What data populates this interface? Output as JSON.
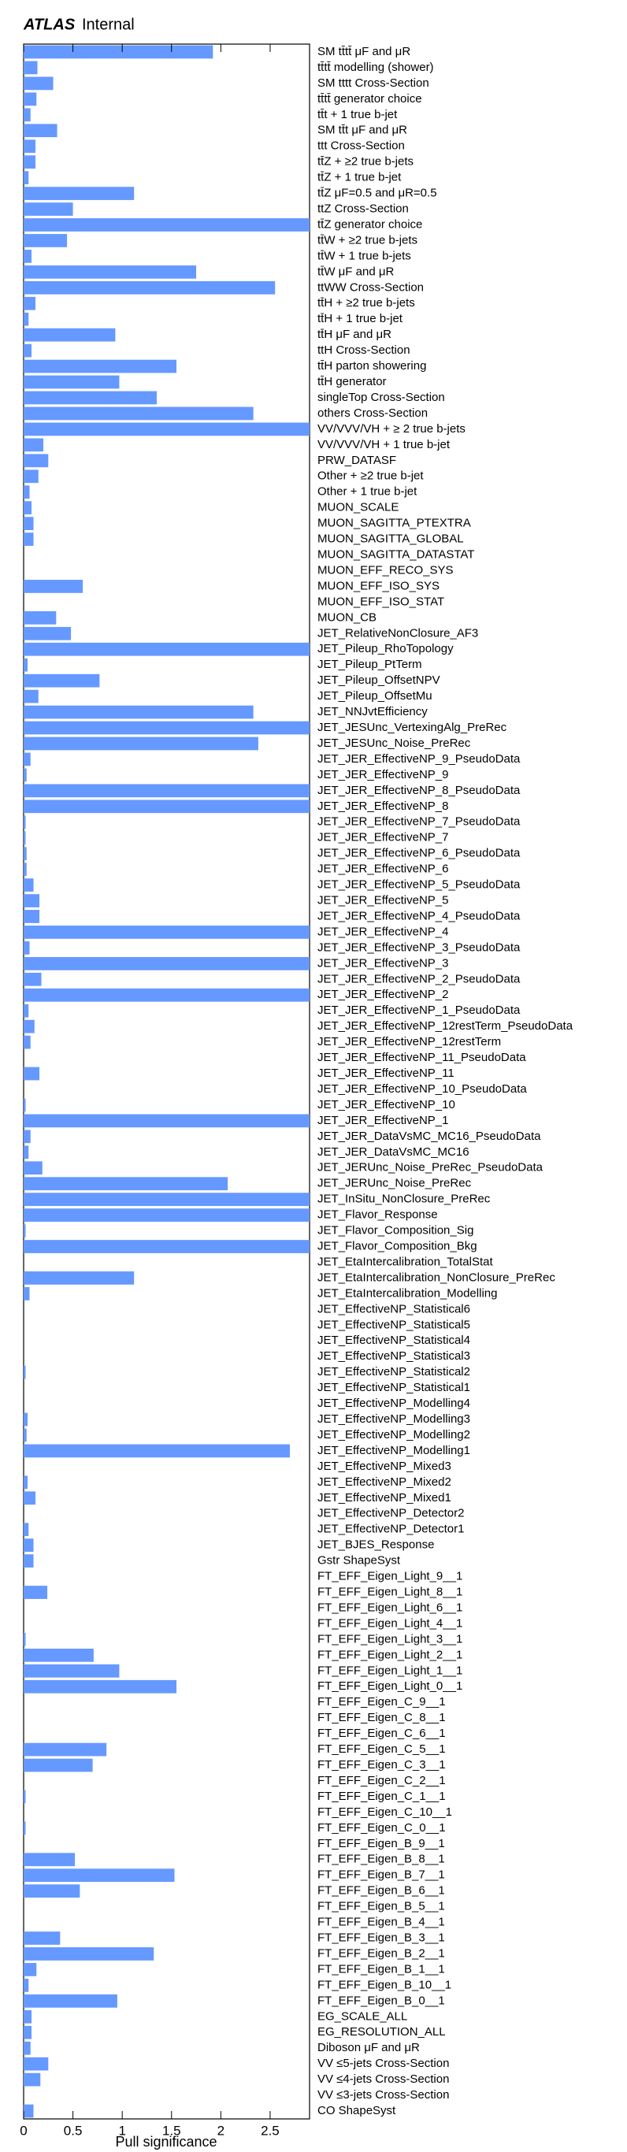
{
  "chart_data": {
    "type": "barh",
    "brand": "ATLAS",
    "title": "Internal",
    "xlabel": "Pull significance",
    "color": "#6699ff",
    "xlim": [
      0,
      2.9
    ],
    "xticks": [
      0,
      0.5,
      1,
      1.5,
      2,
      2.5
    ],
    "categories": [
      "SM tt̄tt̄  μF and  μR",
      "tt̄tt̄ modelling (shower)",
      "SM tttt Cross-Section",
      "tt̄tt̄ generator choice",
      "tt̄t + 1 true b-jet",
      "SM tt̄t  μF and  μR",
      "ttt Cross-Section",
      "tt̄Z +  ≥2 true b-jets",
      "tt̄Z + 1 true b-jet",
      "tt̄Z  μF=0.5 and  μR=0.5",
      "ttZ Cross-Section",
      "tt̄Z generator choice",
      "tt̄W +  ≥2 true b-jets",
      "tt̄W + 1 true b-jets",
      "tt̄W  μF and  μR",
      "ttWW Cross-Section",
      "tt̄H +  ≥2 true b-jets",
      "tt̄H + 1 true b-jet",
      "tt̄H  μF and  μR",
      "ttH Cross-Section",
      "tt̄H parton showering",
      "tt̄H generator",
      "singleTop Cross-Section",
      "others Cross-Section",
      "VV/VVV/VH +  ≥ 2 true b-jets",
      "VV/VVV/VH + 1 true b-jet",
      "PRW_DATASF",
      "Other +  ≥2 true b-jet",
      "Other + 1 true b-jet",
      "MUON_SCALE",
      "MUON_SAGITTA_PTEXTRA",
      "MUON_SAGITTA_GLOBAL",
      "MUON_SAGITTA_DATASTAT",
      "MUON_EFF_RECO_SYS",
      "MUON_EFF_ISO_SYS",
      "MUON_EFF_ISO_STAT",
      "MUON_CB",
      "JET_RelativeNonClosure_AF3",
      "JET_Pileup_RhoTopology",
      "JET_Pileup_PtTerm",
      "JET_Pileup_OffsetNPV",
      "JET_Pileup_OffsetMu",
      "JET_NNJvtEfficiency",
      "JET_JESUnc_VertexingAlg_PreRec",
      "JET_JESUnc_Noise_PreRec",
      "JET_JER_EffectiveNP_9_PseudoData",
      "JET_JER_EffectiveNP_9",
      "JET_JER_EffectiveNP_8_PseudoData",
      "JET_JER_EffectiveNP_8",
      "JET_JER_EffectiveNP_7_PseudoData",
      "JET_JER_EffectiveNP_7",
      "JET_JER_EffectiveNP_6_PseudoData",
      "JET_JER_EffectiveNP_6",
      "JET_JER_EffectiveNP_5_PseudoData",
      "JET_JER_EffectiveNP_5",
      "JET_JER_EffectiveNP_4_PseudoData",
      "JET_JER_EffectiveNP_4",
      "JET_JER_EffectiveNP_3_PseudoData",
      "JET_JER_EffectiveNP_3",
      "JET_JER_EffectiveNP_2_PseudoData",
      "JET_JER_EffectiveNP_2",
      "JET_JER_EffectiveNP_1_PseudoData",
      "JET_JER_EffectiveNP_12restTerm_PseudoData",
      "JET_JER_EffectiveNP_12restTerm",
      "JET_JER_EffectiveNP_11_PseudoData",
      "JET_JER_EffectiveNP_11",
      "JET_JER_EffectiveNP_10_PseudoData",
      "JET_JER_EffectiveNP_10",
      "JET_JER_EffectiveNP_1",
      "JET_JER_DataVsMC_MC16_PseudoData",
      "JET_JER_DataVsMC_MC16",
      "JET_JERUnc_Noise_PreRec_PseudoData",
      "JET_JERUnc_Noise_PreRec",
      "JET_InSitu_NonClosure_PreRec",
      "JET_Flavor_Response",
      "JET_Flavor_Composition_Sig",
      "JET_Flavor_Composition_Bkg",
      "JET_EtaIntercalibration_TotalStat",
      "JET_EtaIntercalibration_NonClosure_PreRec",
      "JET_EtaIntercalibration_Modelling",
      "JET_EffectiveNP_Statistical6",
      "JET_EffectiveNP_Statistical5",
      "JET_EffectiveNP_Statistical4",
      "JET_EffectiveNP_Statistical3",
      "JET_EffectiveNP_Statistical2",
      "JET_EffectiveNP_Statistical1",
      "JET_EffectiveNP_Modelling4",
      "JET_EffectiveNP_Modelling3",
      "JET_EffectiveNP_Modelling2",
      "JET_EffectiveNP_Modelling1",
      "JET_EffectiveNP_Mixed3",
      "JET_EffectiveNP_Mixed2",
      "JET_EffectiveNP_Mixed1",
      "JET_EffectiveNP_Detector2",
      "JET_EffectiveNP_Detector1",
      "JET_BJES_Response",
      "Gstr ShapeSyst",
      "FT_EFF_Eigen_Light_9__1",
      "FT_EFF_Eigen_Light_8__1",
      "FT_EFF_Eigen_Light_6__1",
      "FT_EFF_Eigen_Light_4__1",
      "FT_EFF_Eigen_Light_3__1",
      "FT_EFF_Eigen_Light_2__1",
      "FT_EFF_Eigen_Light_1__1",
      "FT_EFF_Eigen_Light_0__1",
      "FT_EFF_Eigen_C_9__1",
      "FT_EFF_Eigen_C_8__1",
      "FT_EFF_Eigen_C_6__1",
      "FT_EFF_Eigen_C_5__1",
      "FT_EFF_Eigen_C_3__1",
      "FT_EFF_Eigen_C_2__1",
      "FT_EFF_Eigen_C_1__1",
      "FT_EFF_Eigen_C_10__1",
      "FT_EFF_Eigen_C_0__1",
      "FT_EFF_Eigen_B_9__1",
      "FT_EFF_Eigen_B_8__1",
      "FT_EFF_Eigen_B_7__1",
      "FT_EFF_Eigen_B_6__1",
      "FT_EFF_Eigen_B_5__1",
      "FT_EFF_Eigen_B_4__1",
      "FT_EFF_Eigen_B_3__1",
      "FT_EFF_Eigen_B_2__1",
      "FT_EFF_Eigen_B_1__1",
      "FT_EFF_Eigen_B_10__1",
      "FT_EFF_Eigen_B_0__1",
      "EG_SCALE_ALL",
      "EG_RESOLUTION_ALL",
      "Diboson  μF and  μR",
      "VV  ≤5-jets Cross-Section",
      "VV  ≤4-jets Cross-Section",
      "VV  ≤3-jets Cross-Section",
      "CO ShapeSyst"
    ],
    "values": [
      1.92,
      0.14,
      0.3,
      0.13,
      0.07,
      0.34,
      0.12,
      0.12,
      0.05,
      1.12,
      0.5,
      2.9,
      0.44,
      0.08,
      1.75,
      2.55,
      0.12,
      0.05,
      0.93,
      0.08,
      1.55,
      0.97,
      1.35,
      2.33,
      2.9,
      0.2,
      0.25,
      0.15,
      0.06,
      0.08,
      0.1,
      0.1,
      0,
      0,
      0.6,
      0,
      0.33,
      0.48,
      2.9,
      0.04,
      0.77,
      0.15,
      2.33,
      2.9,
      2.38,
      0.07,
      0.03,
      2.9,
      2.9,
      0.02,
      0.02,
      0.03,
      0.03,
      0.1,
      0.16,
      0.16,
      2.9,
      0.06,
      2.9,
      0.18,
      2.9,
      0.05,
      0.11,
      0.07,
      0,
      0.16,
      0,
      0.02,
      2.9,
      0.07,
      0.05,
      0.19,
      2.07,
      2.9,
      2.9,
      0.02,
      2.9,
      0,
      1.12,
      0.06,
      0,
      0,
      0,
      0,
      0.02,
      0,
      0,
      0.04,
      0.03,
      2.7,
      0,
      0.04,
      0.12,
      0,
      0.05,
      0.1,
      0.1,
      0,
      0.24,
      0,
      0,
      0.02,
      0.71,
      0.97,
      1.55,
      0,
      0,
      0,
      0.84,
      0.7,
      0,
      0.02,
      0,
      0.02,
      0,
      0.52,
      1.53,
      0.57,
      0,
      0,
      0.37,
      1.32,
      0.13,
      0.05,
      0.95,
      0.08,
      0.08,
      0.07,
      0.25,
      0.17,
      0,
      0.1
    ]
  }
}
